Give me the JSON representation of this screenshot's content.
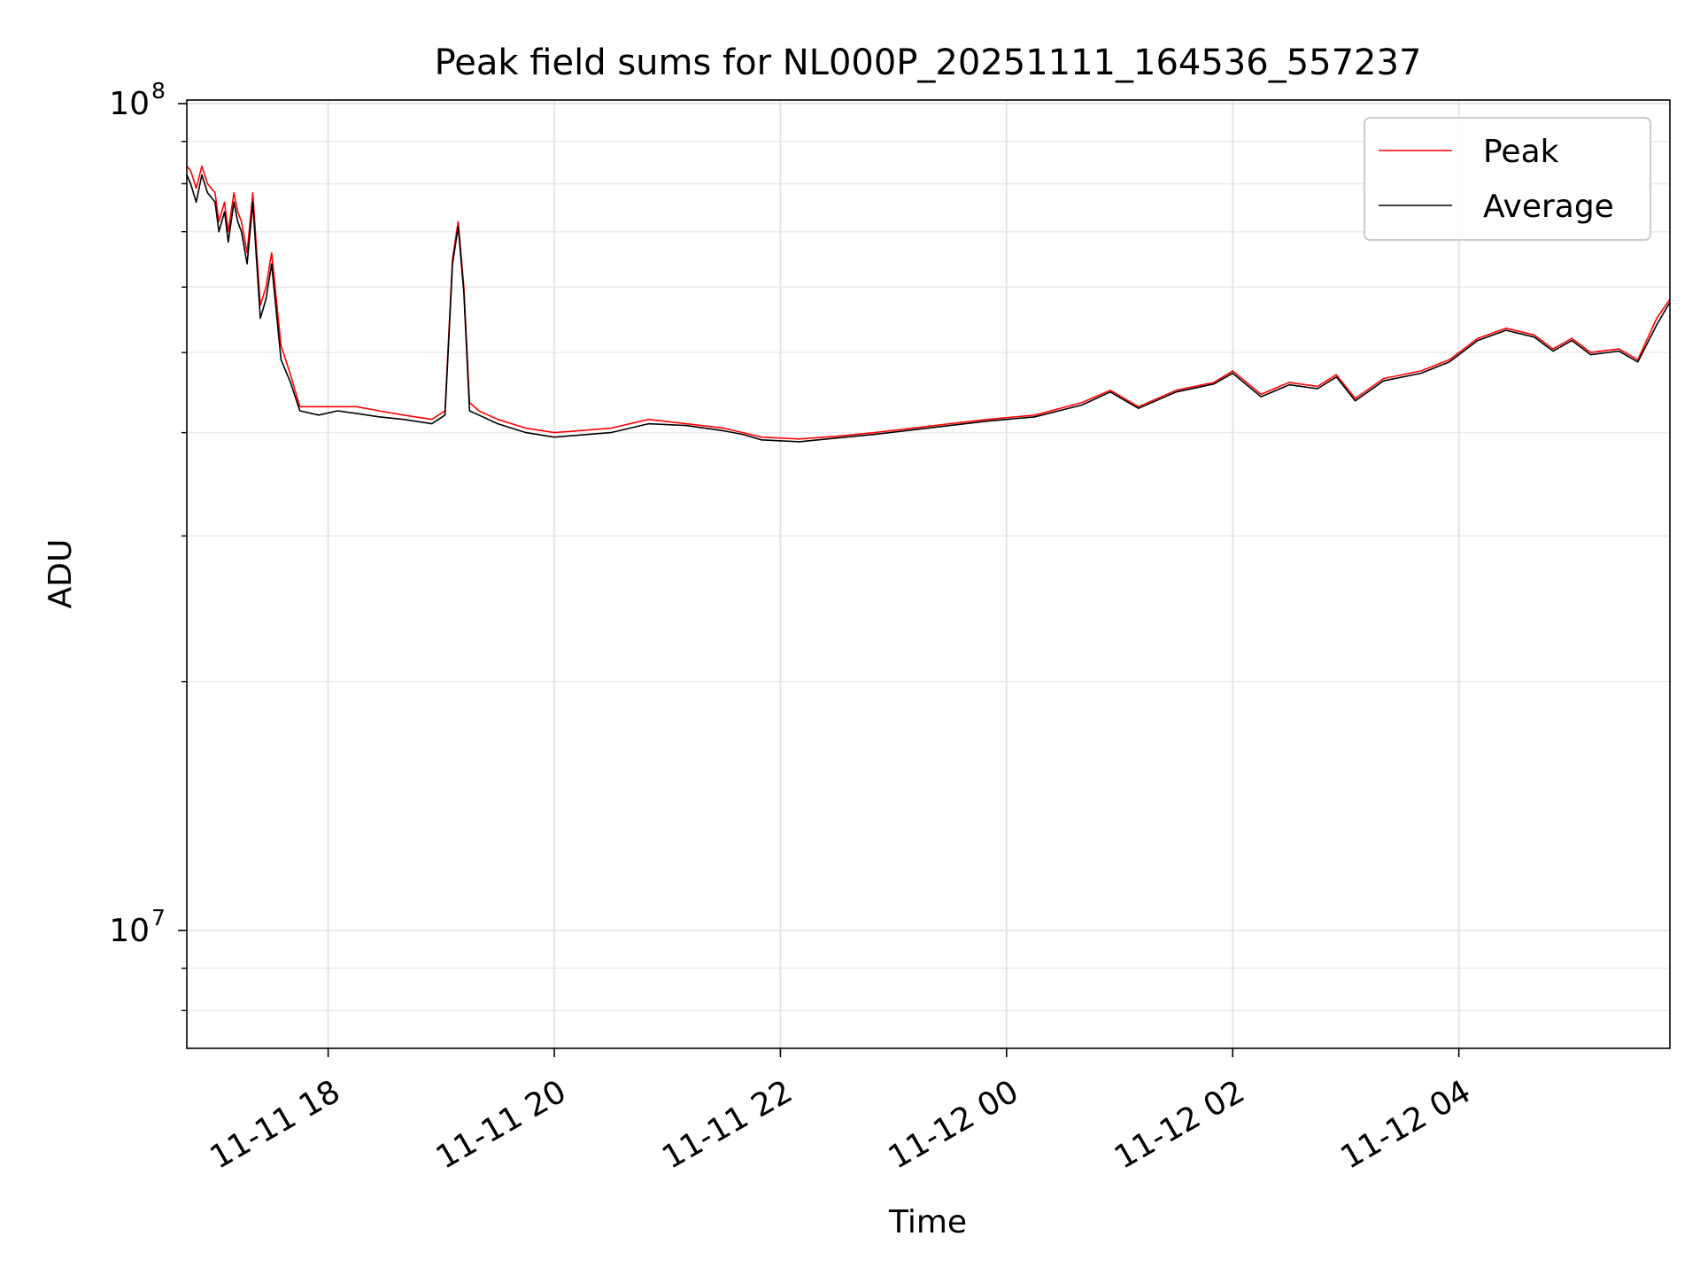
{
  "chart_data": {
    "type": "line",
    "title": "Peak field sums for NL000P_20251111_164536_557237",
    "xlabel": "Time",
    "ylabel": "ADU",
    "yscale": "log",
    "ylim": [
      7200000,
      101000000
    ],
    "xlim": [
      "2025-11-11T16:45",
      "2025-11-12T05:52"
    ],
    "x_ticks": [
      {
        "value": "2025-11-11T18:00",
        "label": "11-11 18"
      },
      {
        "value": "2025-11-11T20:00",
        "label": "11-11 20"
      },
      {
        "value": "2025-11-11T22:00",
        "label": "11-11 22"
      },
      {
        "value": "2025-11-12T00:00",
        "label": "11-12 00"
      },
      {
        "value": "2025-11-12T02:00",
        "label": "11-12 02"
      },
      {
        "value": "2025-11-12T04:00",
        "label": "11-12 04"
      }
    ],
    "y_ticks": [
      {
        "value": 10000000,
        "base": "10",
        "exp": "7"
      },
      {
        "value": 100000000,
        "base": "10",
        "exp": "8"
      }
    ],
    "grid": true,
    "legend_position": "top-right",
    "series": [
      {
        "name": "Peak",
        "color": "#ff0000",
        "x": [
          "2025-11-11T16:45",
          "2025-11-11T16:47",
          "2025-11-11T16:50",
          "2025-11-11T16:53",
          "2025-11-11T16:56",
          "2025-11-11T17:00",
          "2025-11-11T17:02",
          "2025-11-11T17:05",
          "2025-11-11T17:07",
          "2025-11-11T17:10",
          "2025-11-11T17:12",
          "2025-11-11T17:14",
          "2025-11-11T17:17",
          "2025-11-11T17:20",
          "2025-11-11T17:24",
          "2025-11-11T17:27",
          "2025-11-11T17:30",
          "2025-11-11T17:35",
          "2025-11-11T17:40",
          "2025-11-11T17:45",
          "2025-11-11T17:55",
          "2025-11-11T18:05",
          "2025-11-11T18:15",
          "2025-11-11T18:27",
          "2025-11-11T18:40",
          "2025-11-11T18:55",
          "2025-11-11T19:02",
          "2025-11-11T19:06",
          "2025-11-11T19:09",
          "2025-11-11T19:12",
          "2025-11-11T19:15",
          "2025-11-11T19:20",
          "2025-11-11T19:30",
          "2025-11-11T19:45",
          "2025-11-11T20:00",
          "2025-11-11T20:30",
          "2025-11-11T20:50",
          "2025-11-11T21:10",
          "2025-11-11T21:30",
          "2025-11-11T21:40",
          "2025-11-11T21:50",
          "2025-11-11T22:10",
          "2025-11-11T22:30",
          "2025-11-11T22:50",
          "2025-11-11T23:10",
          "2025-11-11T23:30",
          "2025-11-11T23:50",
          "2025-11-12T00:15",
          "2025-11-12T00:40",
          "2025-11-12T00:55",
          "2025-11-12T01:10",
          "2025-11-12T01:30",
          "2025-11-12T01:50",
          "2025-11-12T02:00",
          "2025-11-12T02:15",
          "2025-11-12T02:30",
          "2025-11-12T02:45",
          "2025-11-12T02:55",
          "2025-11-12T03:05",
          "2025-11-12T03:20",
          "2025-11-12T03:40",
          "2025-11-12T03:55",
          "2025-11-12T04:10",
          "2025-11-12T04:25",
          "2025-11-12T04:40",
          "2025-11-12T04:50",
          "2025-11-12T05:00",
          "2025-11-12T05:10",
          "2025-11-12T05:25",
          "2025-11-12T05:35",
          "2025-11-12T05:45",
          "2025-11-12T05:52"
        ],
        "values": [
          84000000,
          83000000,
          79000000,
          84000000,
          80000000,
          78000000,
          72000000,
          76000000,
          70000000,
          78000000,
          74000000,
          72000000,
          66000000,
          78000000,
          57000000,
          60000000,
          66000000,
          51000000,
          47000000,
          43000000,
          43000000,
          43000000,
          43000000,
          42500000,
          42000000,
          41500000,
          42500000,
          65000000,
          72000000,
          60000000,
          43500000,
          42500000,
          41500000,
          40500000,
          40000000,
          40500000,
          41500000,
          41000000,
          40500000,
          40000000,
          39500000,
          39300000,
          39600000,
          40000000,
          40500000,
          41000000,
          41500000,
          42000000,
          43500000,
          45000000,
          43000000,
          45000000,
          46000000,
          47500000,
          44500000,
          46000000,
          45500000,
          47000000,
          44000000,
          46500000,
          47500000,
          49000000,
          52000000,
          53500000,
          52500000,
          50500000,
          52000000,
          50000000,
          50500000,
          49000000,
          55000000,
          58000000
        ]
      },
      {
        "name": "Average",
        "color": "#000000",
        "x": [
          "2025-11-11T16:45",
          "2025-11-11T16:47",
          "2025-11-11T16:50",
          "2025-11-11T16:53",
          "2025-11-11T16:56",
          "2025-11-11T17:00",
          "2025-11-11T17:02",
          "2025-11-11T17:05",
          "2025-11-11T17:07",
          "2025-11-11T17:10",
          "2025-11-11T17:12",
          "2025-11-11T17:14",
          "2025-11-11T17:17",
          "2025-11-11T17:20",
          "2025-11-11T17:24",
          "2025-11-11T17:27",
          "2025-11-11T17:30",
          "2025-11-11T17:35",
          "2025-11-11T17:40",
          "2025-11-11T17:45",
          "2025-11-11T17:55",
          "2025-11-11T18:05",
          "2025-11-11T18:15",
          "2025-11-11T18:27",
          "2025-11-11T18:40",
          "2025-11-11T18:55",
          "2025-11-11T19:02",
          "2025-11-11T19:06",
          "2025-11-11T19:09",
          "2025-11-11T19:12",
          "2025-11-11T19:15",
          "2025-11-11T19:20",
          "2025-11-11T19:30",
          "2025-11-11T19:45",
          "2025-11-11T20:00",
          "2025-11-11T20:30",
          "2025-11-11T20:50",
          "2025-11-11T21:10",
          "2025-11-11T21:30",
          "2025-11-11T21:40",
          "2025-11-11T21:50",
          "2025-11-11T22:10",
          "2025-11-11T22:30",
          "2025-11-11T22:50",
          "2025-11-11T23:10",
          "2025-11-11T23:30",
          "2025-11-11T23:50",
          "2025-11-12T00:15",
          "2025-11-12T00:40",
          "2025-11-12T00:55",
          "2025-11-12T01:10",
          "2025-11-12T01:30",
          "2025-11-12T01:50",
          "2025-11-12T02:00",
          "2025-11-12T02:15",
          "2025-11-12T02:30",
          "2025-11-12T02:45",
          "2025-11-12T02:55",
          "2025-11-12T03:05",
          "2025-11-12T03:20",
          "2025-11-12T03:40",
          "2025-11-12T03:55",
          "2025-11-12T04:10",
          "2025-11-12T04:25",
          "2025-11-12T04:40",
          "2025-11-12T04:50",
          "2025-11-12T05:00",
          "2025-11-12T05:10",
          "2025-11-12T05:25",
          "2025-11-12T05:35",
          "2025-11-12T05:45",
          "2025-11-12T05:52"
        ],
        "values": [
          82000000,
          80000000,
          76000000,
          82000000,
          78000000,
          76000000,
          70000000,
          74000000,
          68000000,
          76000000,
          72000000,
          70000000,
          64000000,
          76000000,
          55000000,
          58000000,
          64000000,
          49000000,
          46000000,
          42500000,
          42000000,
          42500000,
          42200000,
          41800000,
          41500000,
          41000000,
          42000000,
          64000000,
          71000000,
          59000000,
          42500000,
          42000000,
          41000000,
          40000000,
          39500000,
          40000000,
          41000000,
          40800000,
          40200000,
          39800000,
          39200000,
          39000000,
          39400000,
          39800000,
          40300000,
          40800000,
          41300000,
          41800000,
          43200000,
          44800000,
          42800000,
          44800000,
          45800000,
          47200000,
          44200000,
          45700000,
          45200000,
          46700000,
          43700000,
          46200000,
          47200000,
          48700000,
          51700000,
          53200000,
          52200000,
          50200000,
          51700000,
          49700000,
          50200000,
          48700000,
          54000000,
          57500000
        ]
      }
    ]
  }
}
